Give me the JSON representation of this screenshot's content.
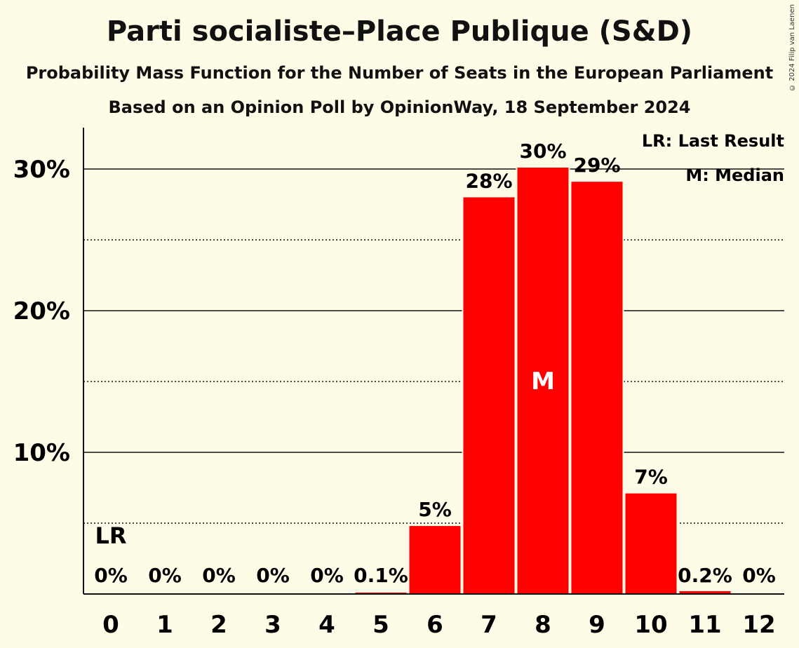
{
  "title": "Parti socialiste–Place Publique (S&D)",
  "subtitle": "Probability Mass Function for the Number of Seats in the European Parliament",
  "subtitle2": "Based on an Opinion Poll by OpinionWay, 18 September 2024",
  "copyright": "© 2024 Filip van Laenen",
  "legend": {
    "lr": "LR: Last Result",
    "m": "M: Median"
  },
  "colors": {
    "bar": "#ff0000",
    "background": "#fefbe6"
  },
  "chart_data": {
    "type": "bar",
    "categories": [
      "0",
      "1",
      "2",
      "3",
      "4",
      "5",
      "6",
      "7",
      "8",
      "9",
      "10",
      "11",
      "12"
    ],
    "values": [
      0,
      0,
      0,
      0,
      0,
      0.1,
      4.8,
      28.0,
      30.1,
      29.1,
      7.1,
      0.2,
      0
    ],
    "data_labels": [
      "0%",
      "0%",
      "0%",
      "0%",
      "0%",
      "0.1%",
      "5%",
      "28%",
      "30%",
      "29%",
      "7%",
      "0.2%",
      "0%"
    ],
    "yticks": [
      10,
      20,
      30
    ],
    "ytick_labels": [
      "10%",
      "20%",
      "30%"
    ],
    "ylim": [
      0,
      32
    ],
    "grid": "solid major lines at 10%, dotted minor lines at 5%",
    "last_result": {
      "category": "0",
      "label": "LR"
    },
    "median": {
      "category": "8",
      "label": "M"
    },
    "xlabel": "",
    "ylabel": ""
  }
}
